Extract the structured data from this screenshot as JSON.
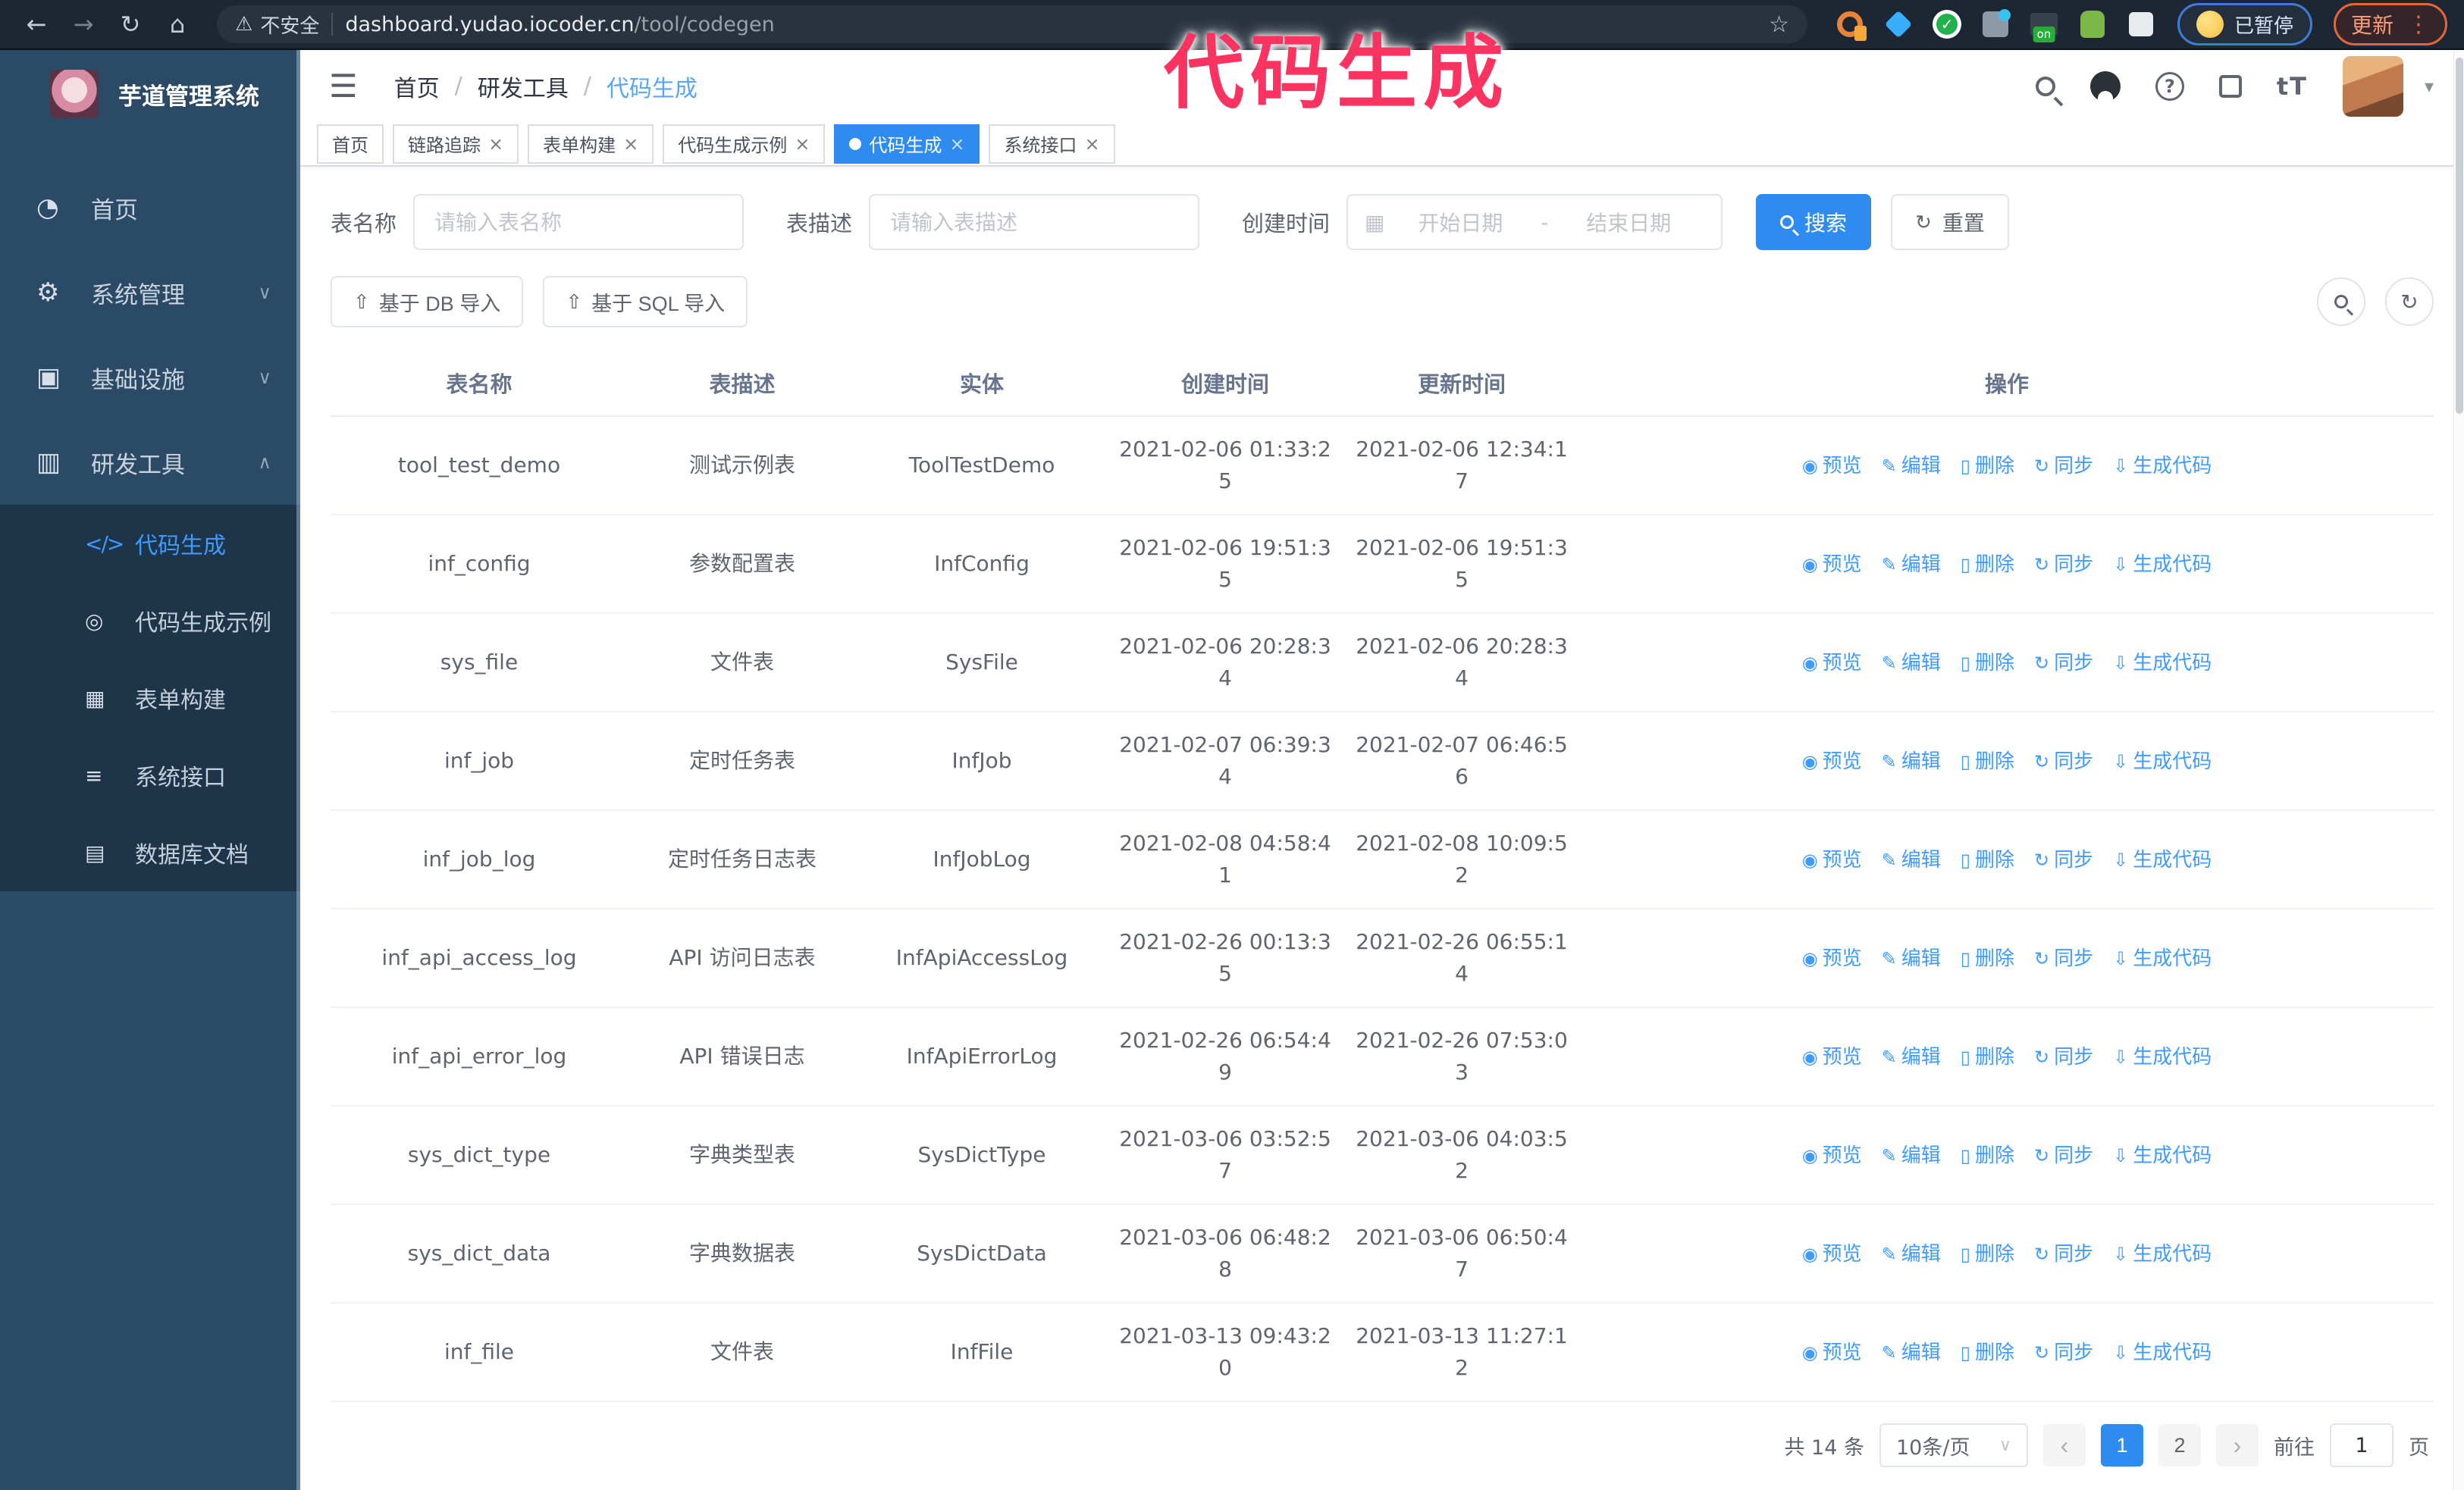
{
  "browser": {
    "security_warning": "不安全",
    "url_host": "dashboard.yudao.iocoder.cn",
    "url_path": "/tool/codegen",
    "paused_badge": "已暂停",
    "update_label": "更新"
  },
  "annotation": {
    "text": "代码生成",
    "color": "#fa3360"
  },
  "icons": {
    "back": "←",
    "forward": "→",
    "reload": "↻",
    "home": "⌂",
    "warning": "⚠",
    "star": "☆",
    "menu_dots": "⋮",
    "hamburger": "☰",
    "breadcrumb_sep": "/",
    "caret_down": "▾",
    "chevron_down": "∨",
    "chevron_up": "∧",
    "close": "×",
    "calendar": "▦",
    "range_sep": "-",
    "refresh": "↻",
    "upload": "⇧",
    "question": "?",
    "font_size": "tT",
    "dashboard": "◔",
    "gear": "⚙",
    "infra": "▣",
    "tools": "▥",
    "code": "</>",
    "example": "◎",
    "form": "▦",
    "api": "≡",
    "db": "▤",
    "prev": "‹",
    "next": "›",
    "select_caret": "∨",
    "eye": "◉",
    "edit": "✎",
    "trash": "▯",
    "sync": "↻",
    "download": "⇩"
  },
  "sidebar": {
    "title": "芋道管理系统",
    "items": [
      {
        "label": "首页"
      },
      {
        "label": "系统管理"
      },
      {
        "label": "基础设施"
      },
      {
        "label": "研发工具"
      }
    ],
    "submenu": [
      {
        "label": "代码生成"
      },
      {
        "label": "代码生成示例"
      },
      {
        "label": "表单构建"
      },
      {
        "label": "系统接口"
      },
      {
        "label": "数据库文档"
      }
    ]
  },
  "breadcrumb": {
    "items": [
      "首页",
      "研发工具",
      "代码生成"
    ]
  },
  "tabs": [
    {
      "label": "首页"
    },
    {
      "label": "链路追踪"
    },
    {
      "label": "表单构建"
    },
    {
      "label": "代码生成示例"
    },
    {
      "label": "代码生成"
    },
    {
      "label": "系统接口"
    }
  ],
  "filters": {
    "name_label": "表名称",
    "name_placeholder": "请输入表名称",
    "desc_label": "表描述",
    "desc_placeholder": "请输入表描述",
    "time_label": "创建时间",
    "start_placeholder": "开始日期",
    "end_placeholder": "结束日期",
    "search_label": "搜索",
    "reset_label": "重置"
  },
  "toolbar": {
    "db_import": "基于 DB 导入",
    "sql_import": "基于 SQL 导入"
  },
  "table": {
    "headers": [
      "表名称",
      "表描述",
      "实体",
      "创建时间",
      "更新时间",
      "操作"
    ],
    "actions": [
      {
        "label": "预览",
        "icon": "eye"
      },
      {
        "label": "编辑",
        "icon": "edit"
      },
      {
        "label": "删除",
        "icon": "trash"
      },
      {
        "label": "同步",
        "icon": "sync"
      },
      {
        "label": "生成代码",
        "icon": "download"
      }
    ],
    "rows": [
      {
        "name": "tool_test_demo",
        "desc": "测试示例表",
        "entity": "ToolTestDemo",
        "created": "2021-02-06 01:33:25",
        "updated": "2021-02-06 12:34:17"
      },
      {
        "name": "inf_config",
        "desc": "参数配置表",
        "entity": "InfConfig",
        "created": "2021-02-06 19:51:35",
        "updated": "2021-02-06 19:51:35"
      },
      {
        "name": "sys_file",
        "desc": "文件表",
        "entity": "SysFile",
        "created": "2021-02-06 20:28:34",
        "updated": "2021-02-06 20:28:34"
      },
      {
        "name": "inf_job",
        "desc": "定时任务表",
        "entity": "InfJob",
        "created": "2021-02-07 06:39:34",
        "updated": "2021-02-07 06:46:56"
      },
      {
        "name": "inf_job_log",
        "desc": "定时任务日志表",
        "entity": "InfJobLog",
        "created": "2021-02-08 04:58:41",
        "updated": "2021-02-08 10:09:52"
      },
      {
        "name": "inf_api_access_log",
        "desc": "API 访问日志表",
        "entity": "InfApiAccessLog",
        "created": "2021-02-26 00:13:35",
        "updated": "2021-02-26 06:55:14"
      },
      {
        "name": "inf_api_error_log",
        "desc": "API 错误日志",
        "entity": "InfApiErrorLog",
        "created": "2021-02-26 06:54:49",
        "updated": "2021-02-26 07:53:03"
      },
      {
        "name": "sys_dict_type",
        "desc": "字典类型表",
        "entity": "SysDictType",
        "created": "2021-03-06 03:52:57",
        "updated": "2021-03-06 04:03:52"
      },
      {
        "name": "sys_dict_data",
        "desc": "字典数据表",
        "entity": "SysDictData",
        "created": "2021-03-06 06:48:28",
        "updated": "2021-03-06 06:50:47"
      },
      {
        "name": "inf_file",
        "desc": "文件表",
        "entity": "InfFile",
        "created": "2021-03-13 09:43:20",
        "updated": "2021-03-13 11:27:12"
      }
    ]
  },
  "pagination": {
    "total": "共 14 条",
    "page_size": "10条/页",
    "pages": [
      "1",
      "2"
    ],
    "active_page": "1",
    "goto_label": "前往",
    "goto_value": "1",
    "goto_unit": "页"
  },
  "colors": {
    "accent": "#2e8cf0",
    "sidebar_bg": "#2b4a66",
    "submenu_bg": "#1d3449",
    "link": "#3e9bff"
  }
}
